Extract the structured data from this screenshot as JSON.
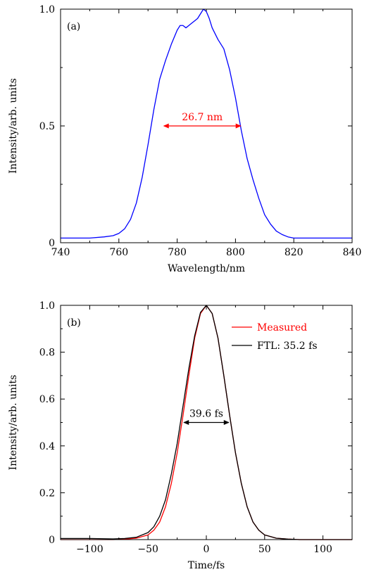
{
  "chart_data": [
    {
      "panel_label": "(a)",
      "type": "line",
      "xlabel": "Wavelength/nm",
      "ylabel": "Intensity/arb. units",
      "xlim": [
        740,
        840
      ],
      "ylim": [
        0,
        1.0
      ],
      "xticks": [
        740,
        760,
        780,
        800,
        820,
        840
      ],
      "xtick_labels": [
        "740",
        "760",
        "780",
        "800",
        "820",
        "840"
      ],
      "yticks": [
        0,
        0.5,
        1.0
      ],
      "ytick_labels": [
        "0",
        "0.5",
        "1.0"
      ],
      "grid": false,
      "series": [
        {
          "color": "#0000ff",
          "x": [
            740,
            745,
            750,
            755,
            758,
            760,
            762,
            764,
            766,
            768,
            770,
            772,
            774,
            776,
            778,
            780,
            781,
            782,
            783,
            784,
            785,
            786,
            787,
            788,
            789,
            790,
            791,
            792,
            794,
            796,
            798,
            800,
            802,
            804,
            806,
            808,
            810,
            812,
            814,
            816,
            818,
            820,
            825,
            830,
            835,
            840
          ],
          "y": [
            0.02,
            0.02,
            0.02,
            0.025,
            0.03,
            0.04,
            0.06,
            0.1,
            0.17,
            0.28,
            0.42,
            0.57,
            0.7,
            0.78,
            0.85,
            0.91,
            0.93,
            0.93,
            0.92,
            0.93,
            0.94,
            0.95,
            0.96,
            0.98,
            1.0,
            0.99,
            0.96,
            0.92,
            0.87,
            0.83,
            0.74,
            0.62,
            0.48,
            0.36,
            0.27,
            0.19,
            0.12,
            0.08,
            0.05,
            0.035,
            0.025,
            0.02,
            0.02,
            0.02,
            0.02,
            0.02
          ]
        }
      ],
      "annotation": {
        "text": "26.7 nm",
        "x_start": 775.2,
        "x_end": 802.0,
        "y": 0.5,
        "color": "#ff0000"
      }
    },
    {
      "panel_label": "(b)",
      "type": "line",
      "xlabel": "Time/fs",
      "ylabel": "Intensity/arb. units",
      "xlim": [
        -125,
        125
      ],
      "ylim": [
        0,
        1.0
      ],
      "xticks": [
        -100,
        -50,
        0,
        50,
        100
      ],
      "xtick_labels": [
        "−100",
        "−50",
        "0",
        "50",
        "100"
      ],
      "yticks": [
        0,
        0.2,
        0.4,
        0.6,
        0.8,
        1.0
      ],
      "ytick_labels": [
        "0",
        "0.2",
        "0.4",
        "0.6",
        "0.8",
        "1.0"
      ],
      "grid": false,
      "legend": "top-right",
      "series": [
        {
          "name": "Measured",
          "color": "#ff0000",
          "x": [
            -125,
            -100,
            -80,
            -70,
            -60,
            -50,
            -45,
            -40,
            -35,
            -30,
            -25,
            -20,
            -15,
            -10,
            -5,
            0,
            5,
            10,
            15,
            20,
            25,
            30,
            35,
            40,
            45,
            50,
            60,
            70,
            80,
            100,
            125
          ],
          "y": [
            0.0,
            0.0,
            0.0,
            0.002,
            0.006,
            0.02,
            0.04,
            0.075,
            0.14,
            0.24,
            0.37,
            0.53,
            0.7,
            0.86,
            0.965,
            1.0,
            0.965,
            0.86,
            0.7,
            0.53,
            0.37,
            0.24,
            0.14,
            0.075,
            0.04,
            0.02,
            0.006,
            0.002,
            0.0,
            0.0,
            0.0
          ]
        },
        {
          "name": "FTL: 35.2 fs",
          "color": "#000000",
          "x": [
            -125,
            -100,
            -80,
            -70,
            -60,
            -50,
            -45,
            -40,
            -35,
            -30,
            -25,
            -20,
            -15,
            -10,
            -5,
            0,
            5,
            10,
            15,
            20,
            25,
            30,
            35,
            40,
            45,
            50,
            60,
            70,
            80,
            100,
            125
          ],
          "y": [
            0.005,
            0.005,
            0.003,
            0.005,
            0.01,
            0.03,
            0.055,
            0.1,
            0.17,
            0.28,
            0.41,
            0.57,
            0.73,
            0.87,
            0.97,
            1.0,
            0.965,
            0.86,
            0.7,
            0.53,
            0.37,
            0.24,
            0.14,
            0.075,
            0.04,
            0.02,
            0.006,
            0.002,
            0.0,
            0.0,
            0.0
          ]
        }
      ],
      "annotation": {
        "text": "39.6 fs",
        "x_start": -19.8,
        "x_end": 19.8,
        "y": 0.5,
        "color": "#000000"
      }
    }
  ]
}
